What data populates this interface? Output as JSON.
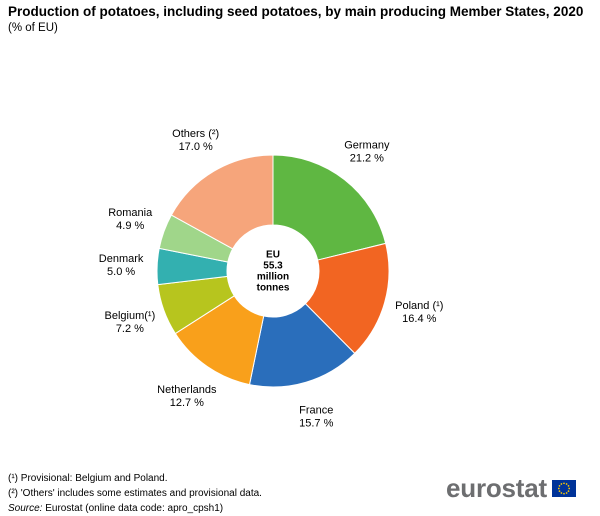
{
  "title": "Production of potatoes, including seed potatoes, by main producing Member States, 2020",
  "subtitle": "(% of EU)",
  "chart_data": {
    "type": "pie",
    "title": "Production of potatoes, including seed potatoes, by main producing Member States, 2020",
    "subtitle": "(% of EU)",
    "center_label": [
      "EU",
      "55.3",
      "million",
      "tonnes"
    ],
    "slices": [
      {
        "name": "Germany",
        "label": "Germany",
        "value": 21.2,
        "value_text": "21.2 %",
        "color": "#5fb742"
      },
      {
        "name": "Poland",
        "label": "Poland (¹)",
        "value": 16.4,
        "value_text": "16.4 %",
        "color": "#f26522"
      },
      {
        "name": "France",
        "label": "France",
        "value": 15.7,
        "value_text": "15.7 %",
        "color": "#2a6ebb"
      },
      {
        "name": "Netherlands",
        "label": "Netherlands",
        "value": 12.7,
        "value_text": "12.7 %",
        "color": "#f9a01b"
      },
      {
        "name": "Belgium",
        "label": "Belgium(¹)",
        "value": 7.2,
        "value_text": "7.2 %",
        "color": "#b7c51e"
      },
      {
        "name": "Denmark",
        "label": "Denmark",
        "value": 5.0,
        "value_text": "5.0 %",
        "color": "#33b0b0"
      },
      {
        "name": "Romania",
        "label": "Romania",
        "value": 4.9,
        "value_text": "4.9 %",
        "color": "#a0d68a"
      },
      {
        "name": "Others",
        "label": "Others (²)",
        "value": 17.0,
        "value_text": "17.0 %",
        "color": "#f6a57b"
      }
    ]
  },
  "footnotes": {
    "note1": "(¹) Provisional: Belgium and Poland.",
    "note2": "(²) 'Others' includes some estimates and provisional data.",
    "source_label": "Source:",
    "source_text": " Eurostat (online data code: apro_cpsh1)"
  },
  "logo": {
    "text": "eurostat"
  }
}
